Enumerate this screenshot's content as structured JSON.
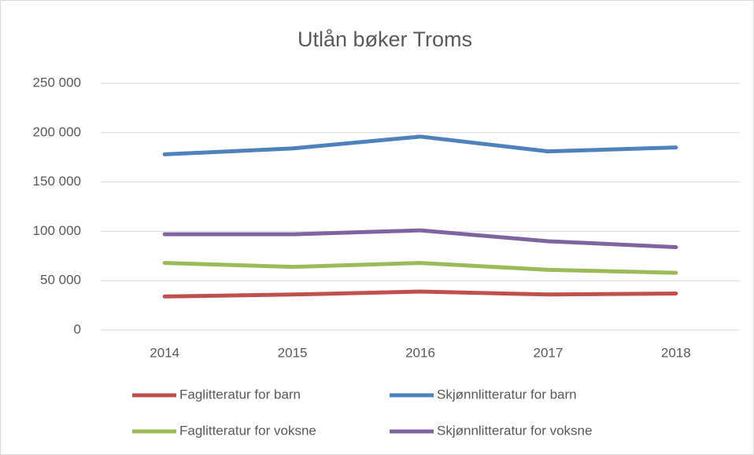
{
  "chart_data": {
    "type": "line",
    "title": "Utlån bøker Troms",
    "categories": [
      "2014",
      "2015",
      "2016",
      "2017",
      "2018"
    ],
    "series": [
      {
        "name": "Faglitteratur for barn",
        "color": "#c0504d",
        "values": [
          34000,
          36000,
          39000,
          36000,
          37000
        ]
      },
      {
        "name": "Skjønnlitteratur for barn",
        "color": "#4f81bd",
        "values": [
          178000,
          184000,
          196000,
          181000,
          185000
        ]
      },
      {
        "name": "Faglitteratur for voksne",
        "color": "#9bbb59",
        "values": [
          68000,
          64000,
          68000,
          61000,
          58000
        ]
      },
      {
        "name": "Skjønnlitteratur for voksne",
        "color": "#8064a2",
        "values": [
          97000,
          97000,
          101000,
          90000,
          84000
        ]
      }
    ],
    "ylim": [
      0,
      250000
    ],
    "yticks": [
      0,
      {
        "value": 50000,
        "label": "50 000"
      },
      {
        "value": 100000,
        "label": "100 000"
      },
      {
        "value": 150000,
        "label": "150 000"
      },
      {
        "value": 200000,
        "label": "200 000"
      },
      {
        "value": 250000,
        "label": "250 000"
      }
    ],
    "grid": true,
    "legend": "bottom"
  }
}
